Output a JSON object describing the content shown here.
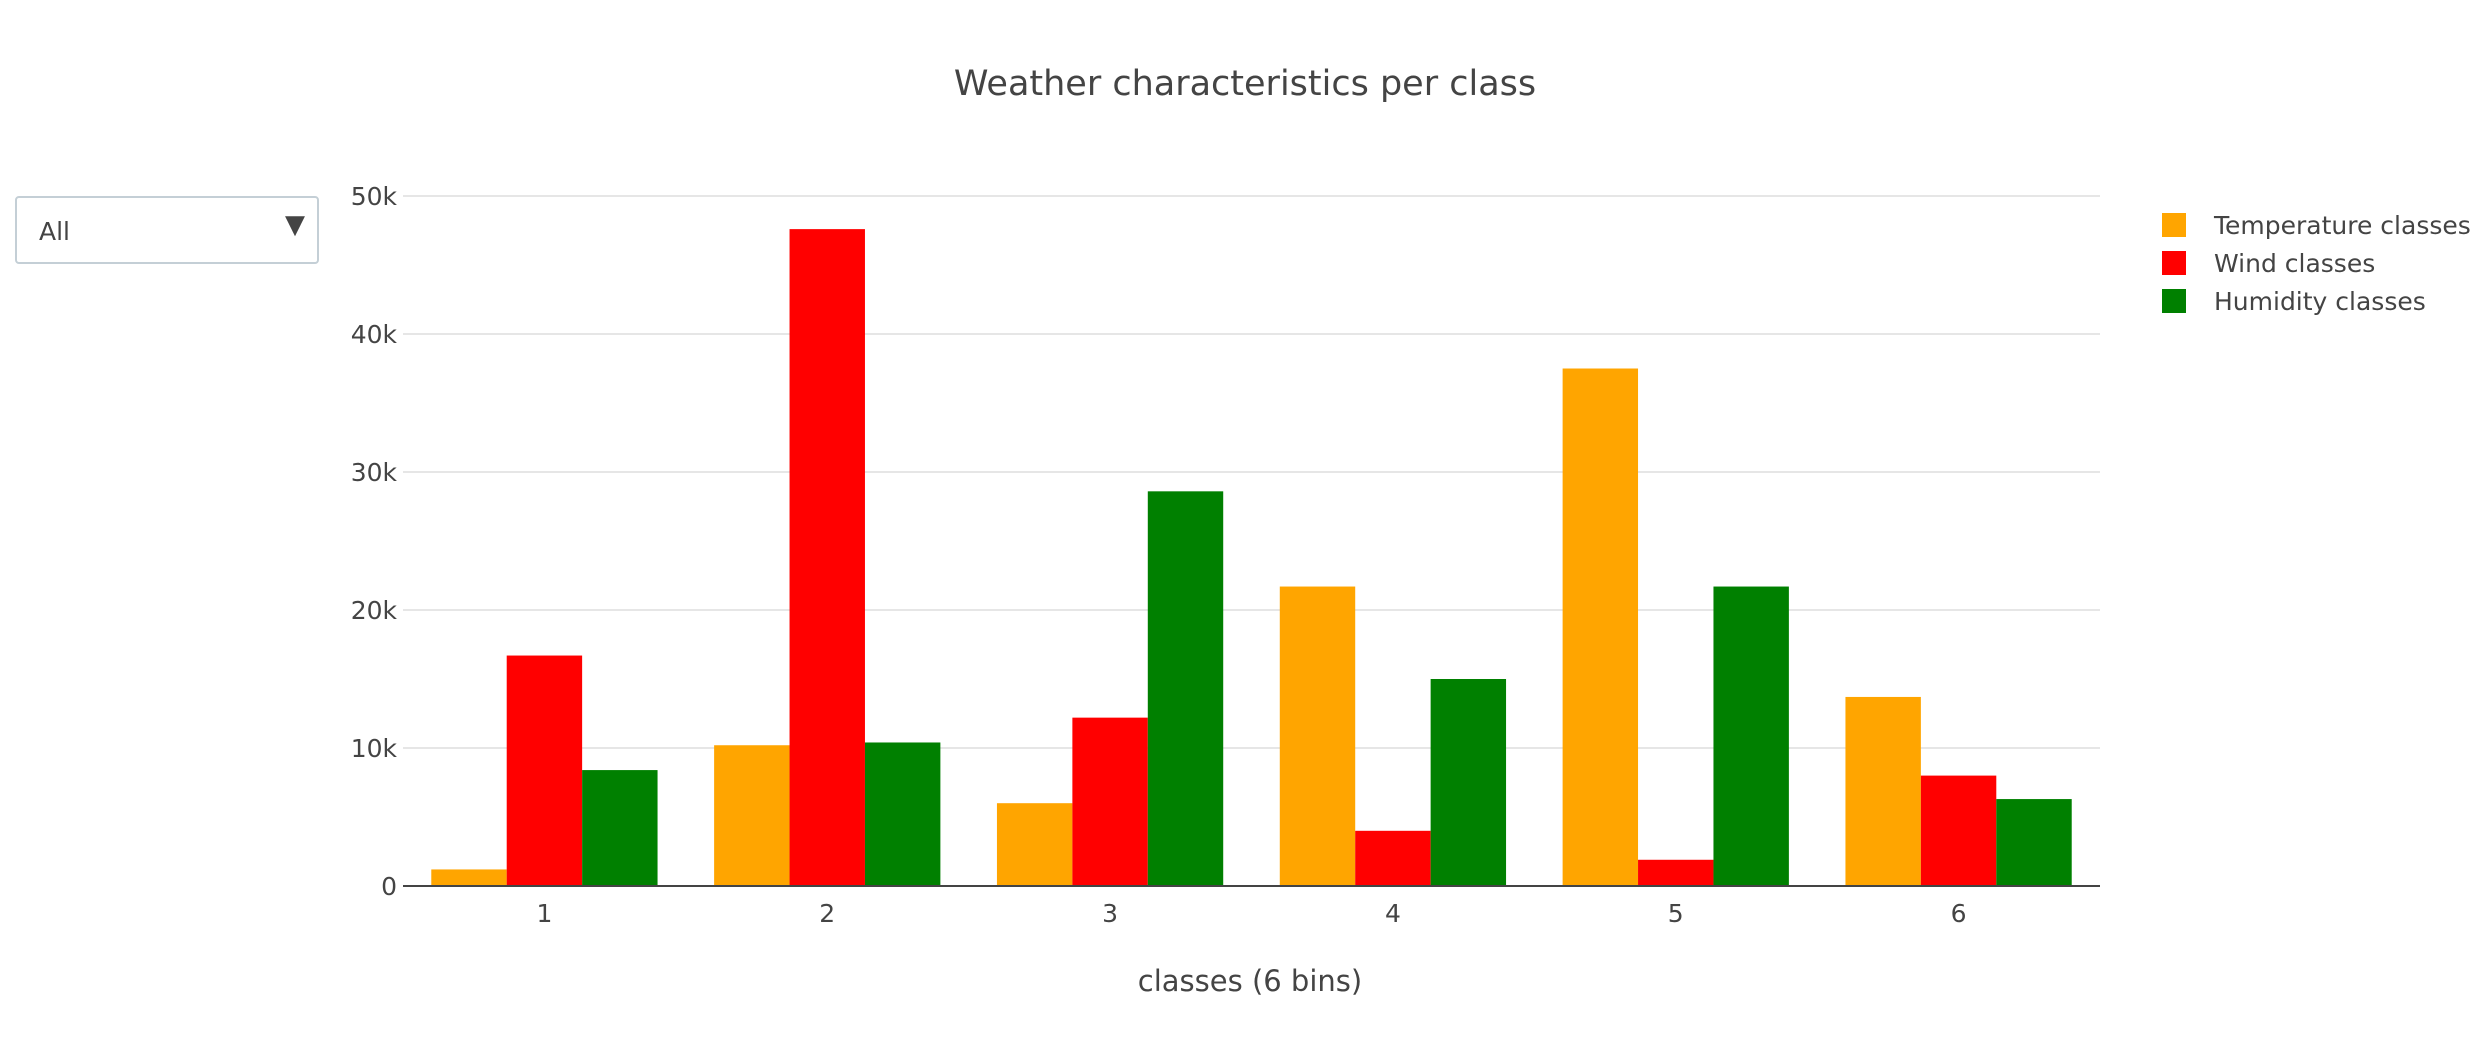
{
  "controls": {
    "dropdown": {
      "selected": "All"
    }
  },
  "icons": {
    "dropdown_caret": "triangle-down-icon"
  },
  "chart_data": {
    "type": "bar",
    "title": "Weather characteristics per class",
    "xlabel": "classes (6 bins)",
    "ylabel": "",
    "categories": [
      "1",
      "2",
      "3",
      "4",
      "5",
      "6"
    ],
    "ylim": [
      0,
      50000
    ],
    "y_ticks": [
      0,
      10000,
      20000,
      30000,
      40000,
      50000
    ],
    "y_tick_labels": [
      "0",
      "10k",
      "20k",
      "30k",
      "40k",
      "50k"
    ],
    "grid": true,
    "legend_position": "top-right",
    "series": [
      {
        "name": "Temperature classes",
        "color": "#FFA500",
        "values": [
          1200,
          10200,
          6000,
          21700,
          37500,
          13700
        ]
      },
      {
        "name": "Wind classes",
        "color": "#FF0000",
        "values": [
          16700,
          47600,
          12200,
          4000,
          1900,
          8000
        ]
      },
      {
        "name": "Humidity classes",
        "color": "#008000",
        "values": [
          8400,
          10400,
          28600,
          15000,
          21700,
          6300
        ]
      }
    ]
  }
}
